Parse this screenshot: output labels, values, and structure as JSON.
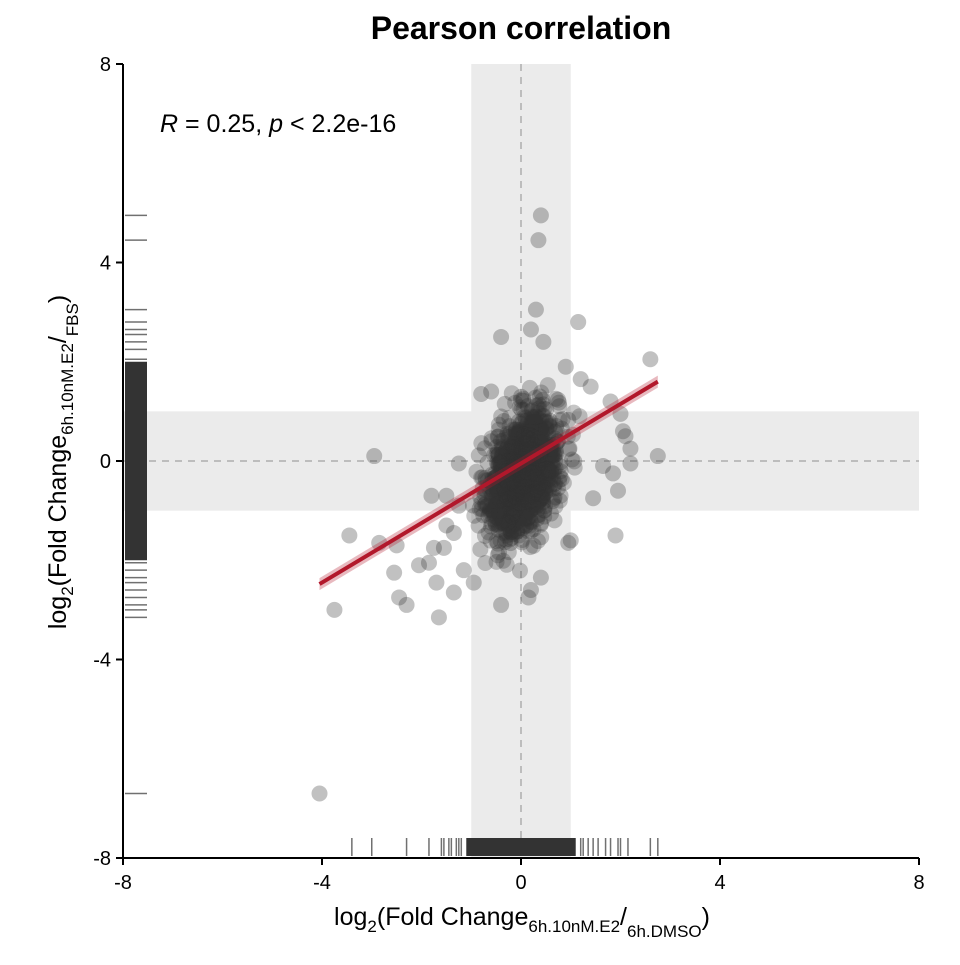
{
  "chart_data": {
    "type": "scatter",
    "title": "Pearson correlation",
    "xlabel": {
      "prefix": "log",
      "base": "2",
      "open": "(Fold Change",
      "numerator": "6h.10nM.E2",
      "slash": "/",
      "denominator": "6h.DMSO",
      "close": ")"
    },
    "ylabel": {
      "prefix": "log",
      "base": "2",
      "open": "(Fold Change",
      "numerator": "6h.10nM.E2",
      "slash": "/",
      "denominator": "FBS",
      "close": ")"
    },
    "annotation": {
      "r_symbol": "R",
      "r_text": " = 0.25, ",
      "p_symbol": "p",
      "p_text": " < 2.2e-16"
    },
    "xlim": [
      -8,
      8
    ],
    "ylim": [
      -8,
      8
    ],
    "x_ticks": [
      -8,
      -4,
      0,
      4,
      8
    ],
    "y_ticks": [
      -8,
      -4,
      0,
      4,
      8
    ],
    "x_tick_labels": [
      "-8",
      "-4",
      "0",
      "4",
      "8"
    ],
    "y_tick_labels": [
      "-8",
      "-4",
      "0",
      "4",
      "8"
    ],
    "threshold_band": [
      -1,
      1
    ],
    "reference_lines": {
      "x": 0,
      "y": 0
    },
    "regression_line": {
      "x": [
        -4.05,
        2.75
      ],
      "y": [
        -2.48,
        1.6
      ],
      "color": "#b2182b"
    },
    "point_color": "#333333",
    "band_color": "#ebebeb",
    "grid": false,
    "legend": "none",
    "core_cluster": {
      "x_center": 0.05,
      "y_center": -0.25,
      "x_sd": 0.35,
      "y_sd": 0.62,
      "n_points": 1200
    },
    "outlier_points": [
      {
        "x": 0.4,
        "y": 4.95
      },
      {
        "x": 0.35,
        "y": 4.45
      },
      {
        "x": 0.3,
        "y": 3.05
      },
      {
        "x": 1.15,
        "y": 2.8
      },
      {
        "x": 2.6,
        "y": 2.05
      },
      {
        "x": 0.2,
        "y": 2.65
      },
      {
        "x": -0.4,
        "y": 2.5
      },
      {
        "x": 0.45,
        "y": 2.4
      },
      {
        "x": 0.9,
        "y": 1.9
      },
      {
        "x": 1.2,
        "y": 1.65
      },
      {
        "x": 1.4,
        "y": 1.5
      },
      {
        "x": -0.6,
        "y": 1.4
      },
      {
        "x": -0.8,
        "y": 1.35
      },
      {
        "x": 1.8,
        "y": 1.2
      },
      {
        "x": 2.0,
        "y": 0.95
      },
      {
        "x": 2.05,
        "y": 0.6
      },
      {
        "x": 2.1,
        "y": 0.5
      },
      {
        "x": 2.2,
        "y": 0.25
      },
      {
        "x": 2.75,
        "y": 0.1
      },
      {
        "x": -2.95,
        "y": 0.1
      },
      {
        "x": 2.2,
        "y": -0.05
      },
      {
        "x": 1.65,
        "y": -0.1
      },
      {
        "x": 1.85,
        "y": -0.25
      },
      {
        "x": 1.95,
        "y": -0.6
      },
      {
        "x": 1.45,
        "y": -0.75
      },
      {
        "x": -1.25,
        "y": -0.05
      },
      {
        "x": -1.5,
        "y": -0.7
      },
      {
        "x": -1.8,
        "y": -0.7
      },
      {
        "x": -1.25,
        "y": -0.9
      },
      {
        "x": -1.5,
        "y": -1.3
      },
      {
        "x": -1.35,
        "y": -1.45
      },
      {
        "x": -1.55,
        "y": -1.75
      },
      {
        "x": -1.75,
        "y": -1.75
      },
      {
        "x": -2.5,
        "y": -1.7
      },
      {
        "x": -2.85,
        "y": -1.65
      },
      {
        "x": -3.45,
        "y": -1.5
      },
      {
        "x": -2.55,
        "y": -2.25
      },
      {
        "x": -2.05,
        "y": -2.1
      },
      {
        "x": -1.85,
        "y": -2.05
      },
      {
        "x": -1.7,
        "y": -2.45
      },
      {
        "x": -2.45,
        "y": -2.75
      },
      {
        "x": -2.3,
        "y": -2.9
      },
      {
        "x": -1.35,
        "y": -2.65
      },
      {
        "x": -0.95,
        "y": -2.45
      },
      {
        "x": -1.15,
        "y": -2.2
      },
      {
        "x": -0.4,
        "y": -2.9
      },
      {
        "x": 0.15,
        "y": -2.75
      },
      {
        "x": 0.2,
        "y": -2.6
      },
      {
        "x": 0.4,
        "y": -2.35
      },
      {
        "x": 0.95,
        "y": -1.65
      },
      {
        "x": 1.0,
        "y": -1.6
      },
      {
        "x": 1.9,
        "y": -1.5
      },
      {
        "x": -3.75,
        "y": -3.0
      },
      {
        "x": -1.65,
        "y": -3.15
      },
      {
        "x": -4.05,
        "y": -6.7
      }
    ],
    "x_rug_sparse": [
      -3.4,
      -3.0,
      -2.3,
      -1.85,
      -1.6,
      -1.55,
      -1.45,
      -1.4,
      -1.3,
      -1.25,
      -1.2,
      1.2,
      1.25,
      1.35,
      1.45,
      1.55,
      1.7,
      1.8,
      1.95,
      2.0,
      2.15,
      2.6,
      2.75
    ],
    "y_rug_sparse": [
      4.95,
      4.45,
      3.05,
      2.8,
      2.65,
      2.55,
      2.4,
      2.25,
      2.05,
      -2.05,
      -2.2,
      -2.35,
      -2.45,
      -2.6,
      -2.75,
      -2.9,
      -3.0,
      -3.15,
      -6.7
    ],
    "x_rug_dense_range": [
      -1.1,
      1.1
    ],
    "y_rug_dense_range": [
      -2.0,
      2.0
    ]
  }
}
